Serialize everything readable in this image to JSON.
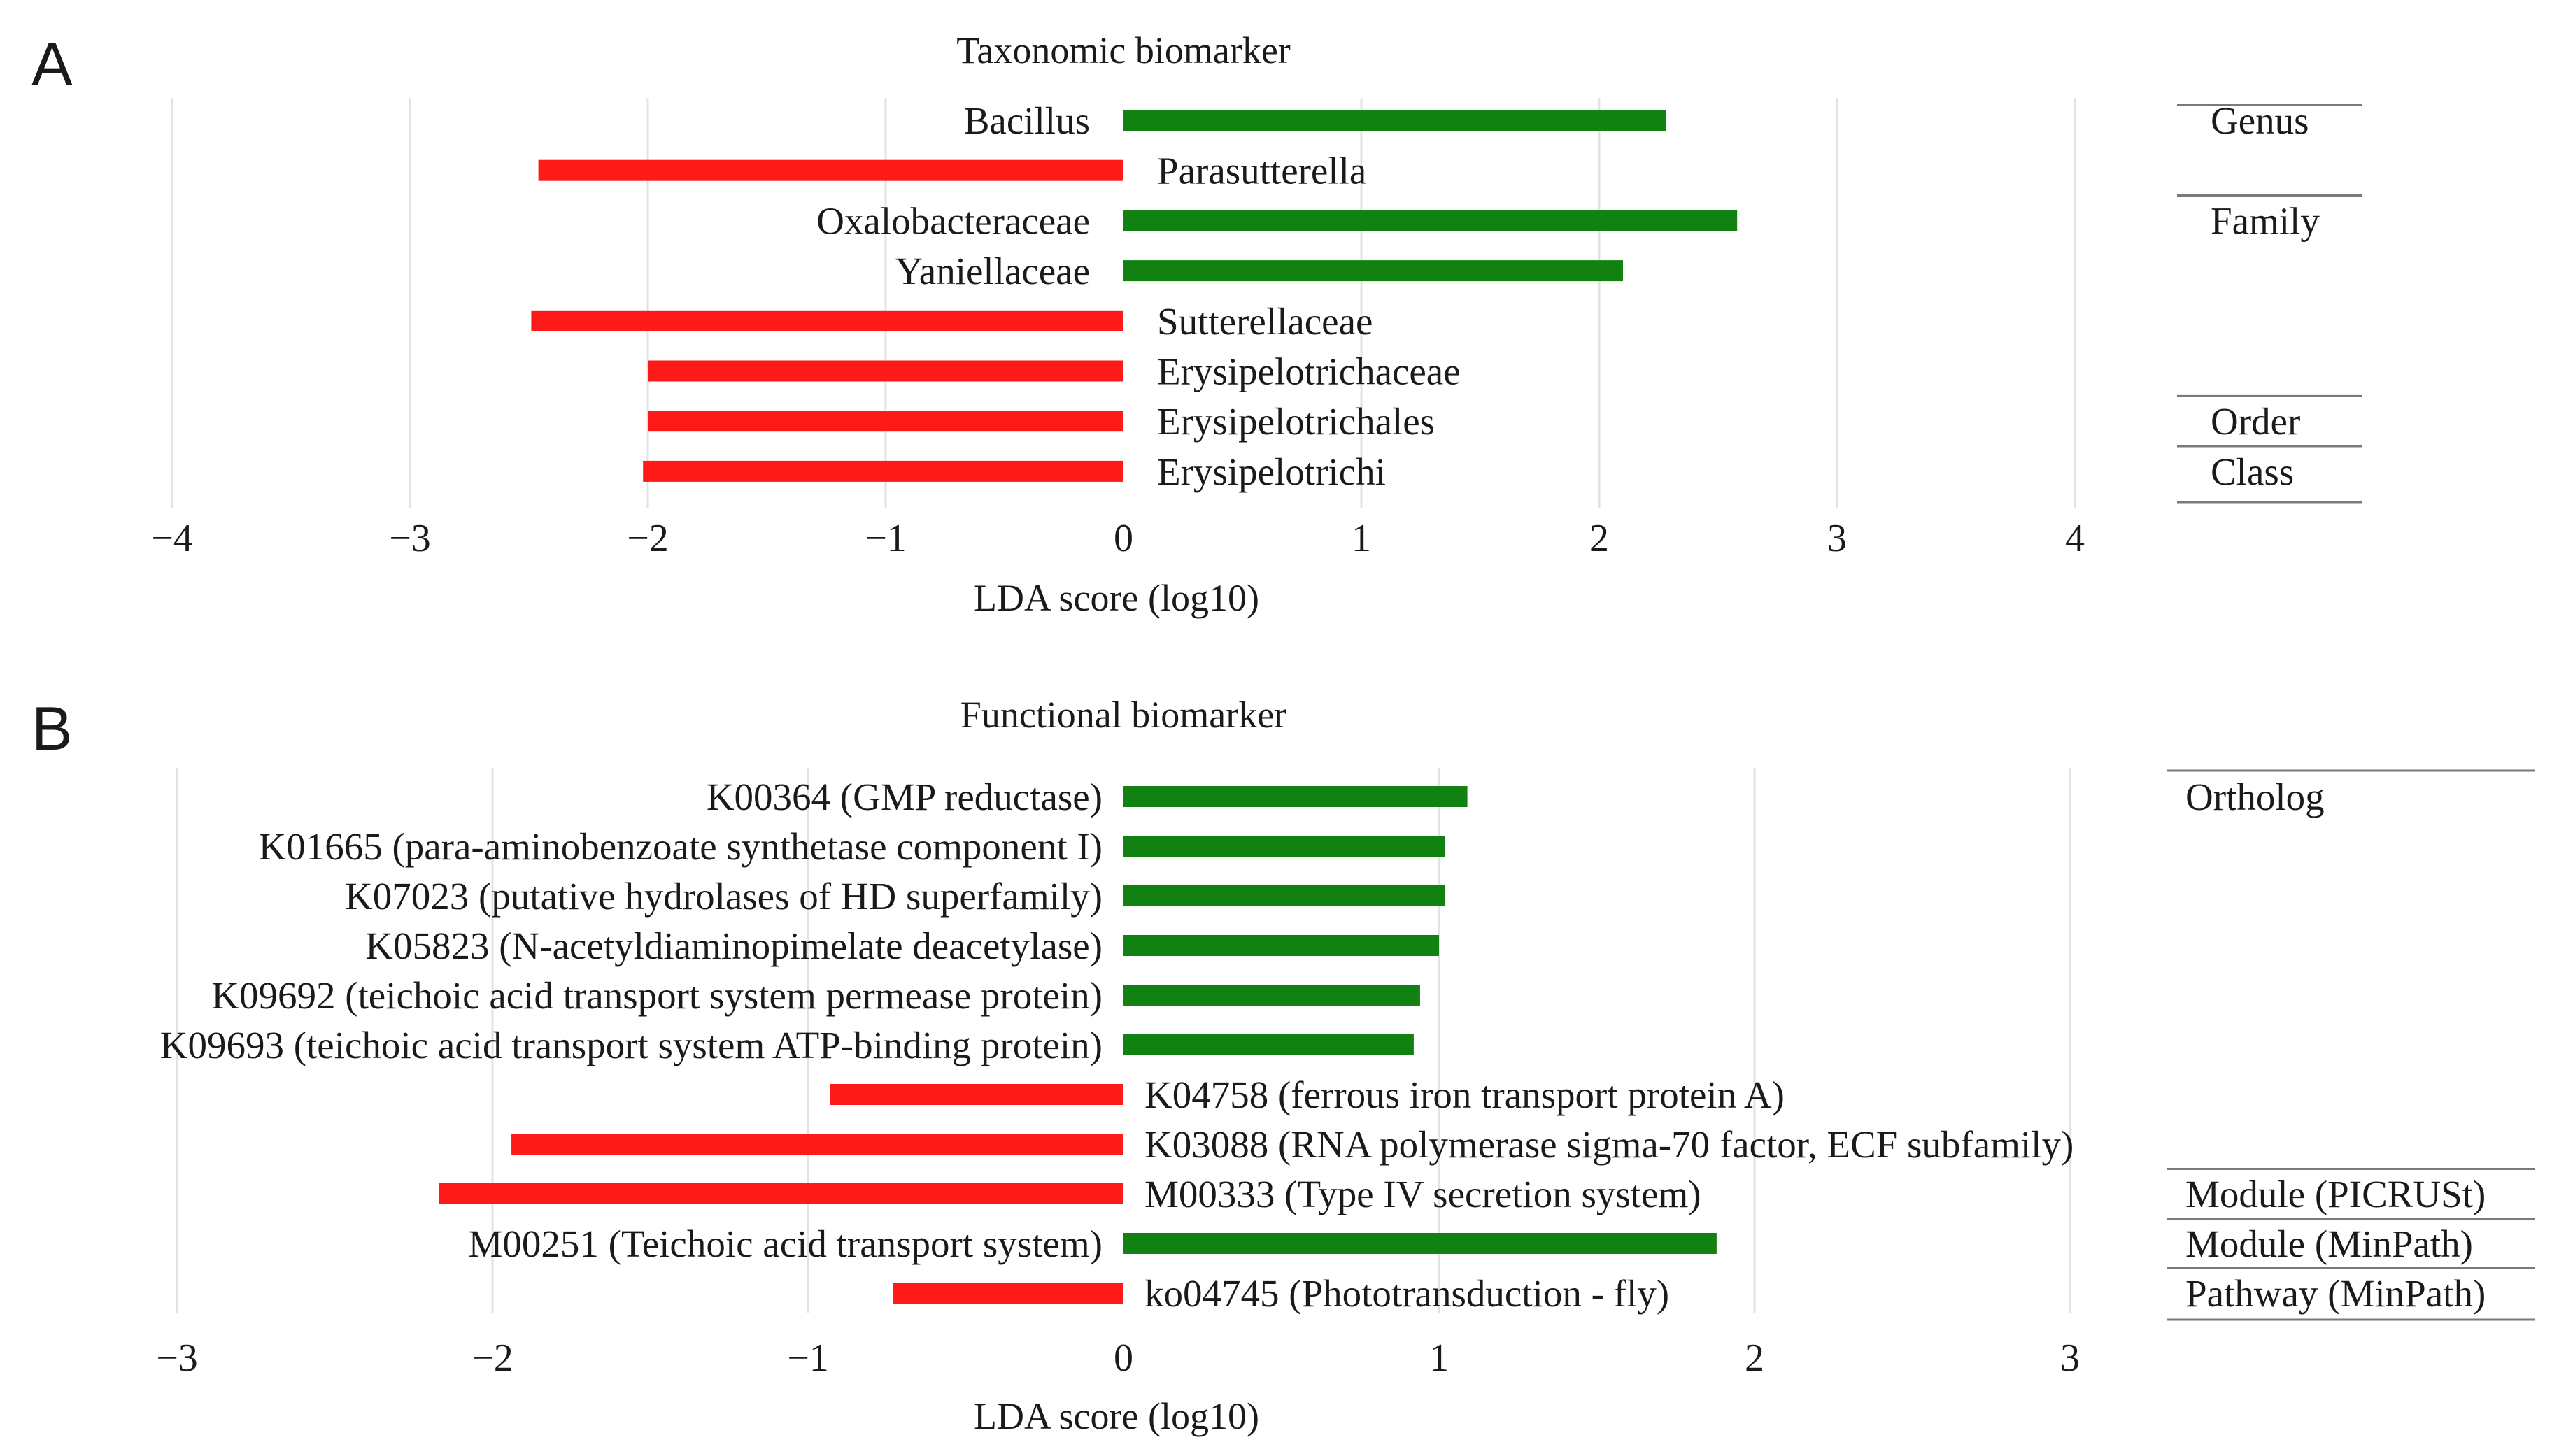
{
  "chart_data": [
    {
      "panel": "A",
      "type": "bar",
      "orientation": "horizontal",
      "title": "Taxonomic biomarker",
      "xlabel": "LDA score (log10)",
      "ylabel": "",
      "xlim": [
        -4,
        4
      ],
      "xticks": [
        -4,
        -3,
        -2,
        -1,
        0,
        1,
        2,
        3,
        4
      ],
      "tick_labels": [
        "−4",
        "−3",
        "−2",
        "−1",
        "0",
        "1",
        "2",
        "3",
        "4"
      ],
      "grid": true,
      "categories": [
        "Bacillus",
        "Parasutterella",
        "Oxalobacteraceae",
        "Yaniellaceae",
        "Sutterellaceae",
        "Erysipelotrichaceae",
        "Erysipelotrichales",
        "Erysipelotrichi"
      ],
      "values": [
        2.28,
        -2.46,
        2.58,
        2.1,
        -2.49,
        -2.0,
        -2.0,
        -2.02
      ],
      "colors": {
        "positive": "#118211",
        "negative": "#ff1a1a"
      },
      "groups": [
        {
          "label": "Genus",
          "start": 0,
          "end": 1
        },
        {
          "label": "Family",
          "start": 2,
          "end": 5
        },
        {
          "label": "Order",
          "start": 6,
          "end": 6
        },
        {
          "label": "Class",
          "start": 7,
          "end": 7
        }
      ]
    },
    {
      "panel": "B",
      "type": "bar",
      "orientation": "horizontal",
      "title": "Functional biomarker",
      "xlabel": "LDA score (log10)",
      "ylabel": "",
      "xlim": [
        -3,
        3
      ],
      "xticks": [
        -3,
        -2,
        -1,
        0,
        1,
        2,
        3
      ],
      "tick_labels": [
        "−3",
        "−2",
        "−1",
        "0",
        "1",
        "2",
        "3"
      ],
      "grid": true,
      "categories": [
        "K00364 (GMP reductase)",
        "K01665 (para-aminobenzoate synthetase component I)",
        "K07023 (putative hydrolases of HD superfamily)",
        "K05823 (N-acetyldiaminopimelate deacetylase)",
        "K09692 (teichoic acid transport system permease protein)",
        "K09693 (teichoic acid transport system ATP-binding protein)",
        "K04758 (ferrous iron transport protein A)",
        "K03088 (RNA polymerase sigma-70 factor, ECF subfamily)",
        "M00333 (Type IV secretion system)",
        "M00251 (Teichoic acid transport system)",
        "ko04745 (Phototransduction - fly)"
      ],
      "values": [
        1.09,
        1.02,
        1.02,
        1.0,
        0.94,
        0.92,
        -0.93,
        -1.94,
        -2.17,
        1.88,
        -0.73
      ],
      "colors": {
        "positive": "#118211",
        "negative": "#ff1a1a"
      },
      "groups": [
        {
          "label": "Ortholog",
          "start": 0,
          "end": 7
        },
        {
          "label": "Module (PICRUSt)",
          "start": 8,
          "end": 8
        },
        {
          "label": "Module (MinPath)",
          "start": 9,
          "end": 9
        },
        {
          "label": "Pathway (MinPath)",
          "start": 10,
          "end": 10
        }
      ]
    }
  ],
  "panels": {
    "a": {
      "letter": "A"
    },
    "b": {
      "letter": "B"
    }
  }
}
